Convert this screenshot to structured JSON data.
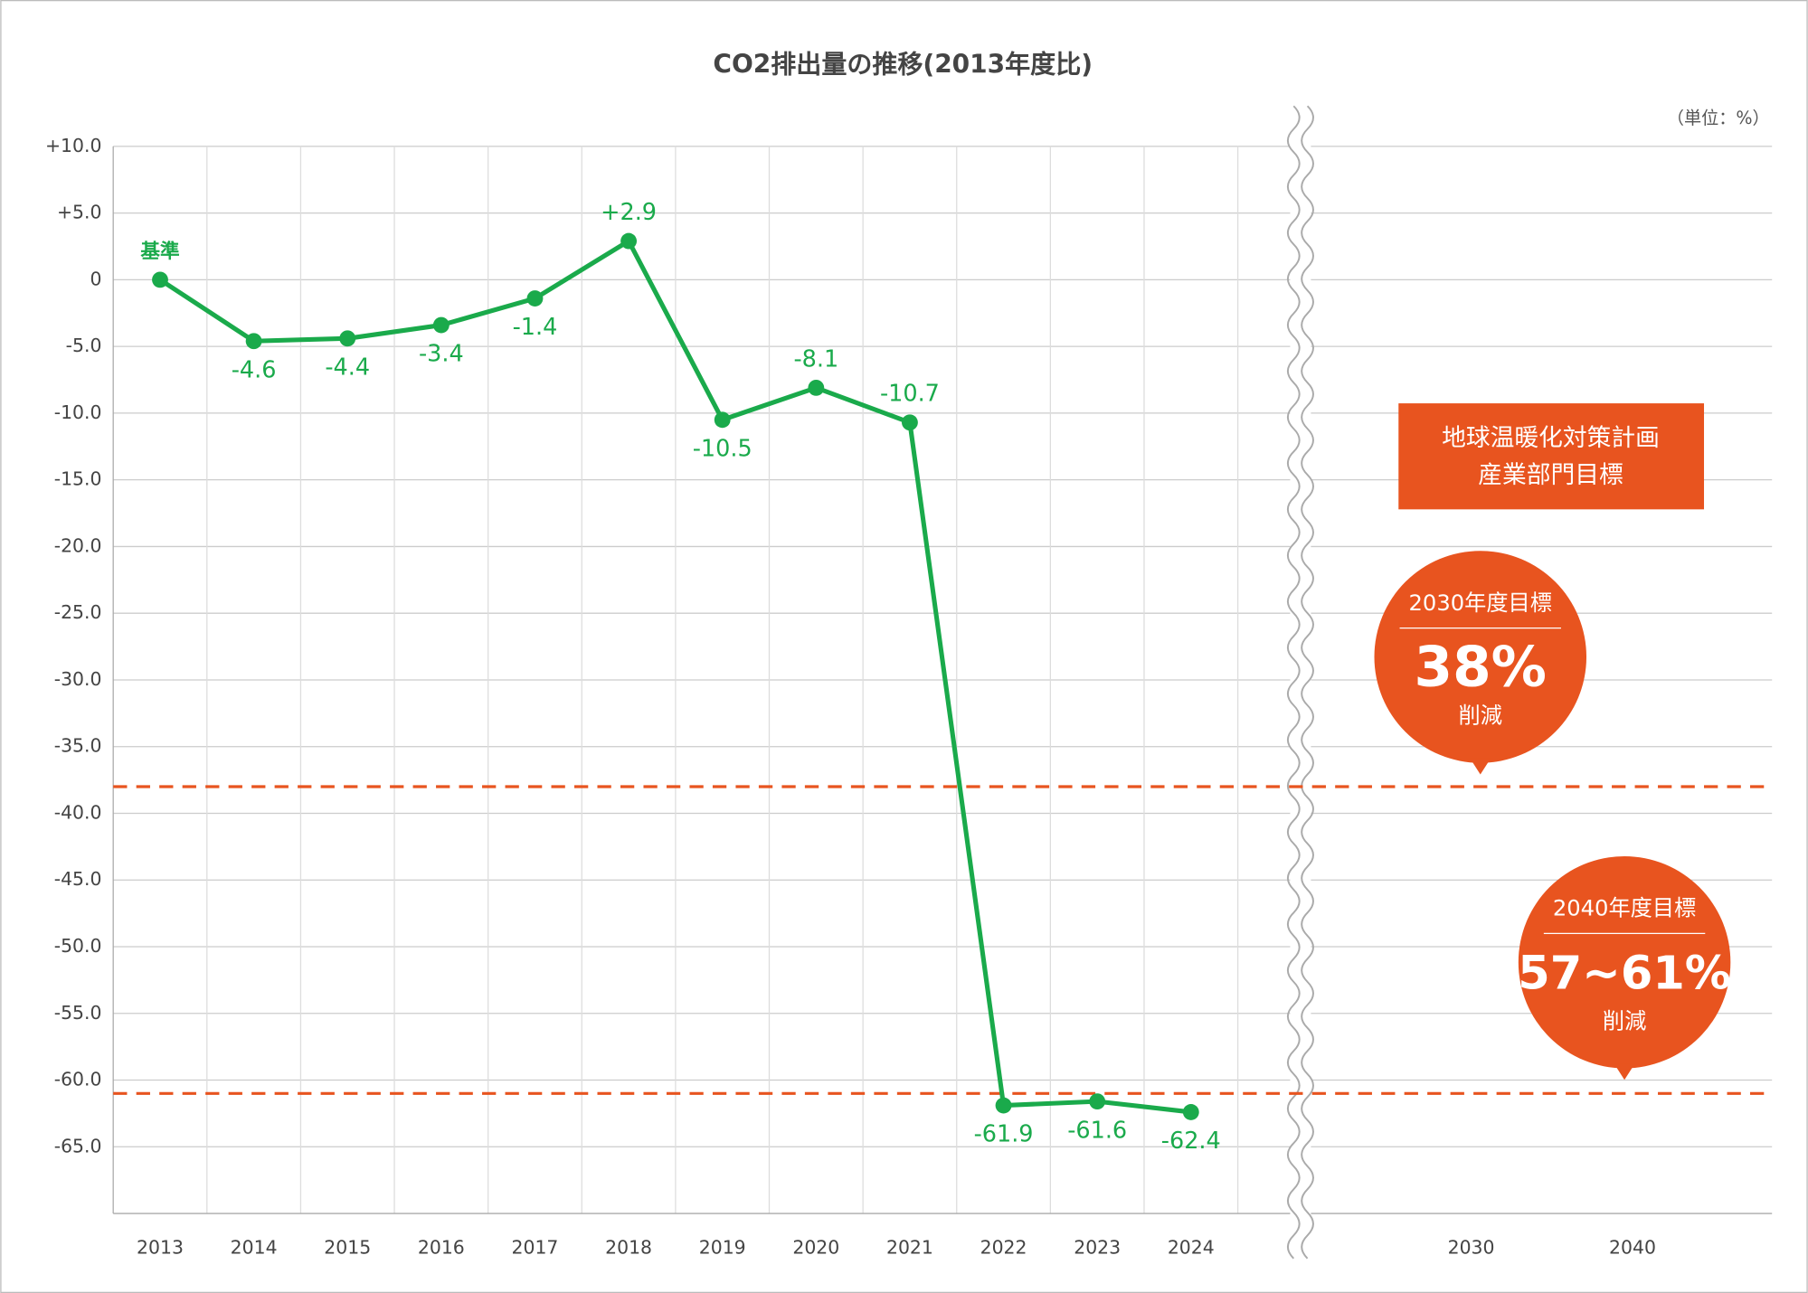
{
  "chart_data": {
    "type": "line",
    "title": "CO2排出量の推移(2013年度比)",
    "unit_label": "（単位：%）",
    "categories": [
      "2013",
      "2014",
      "2015",
      "2016",
      "2017",
      "2018",
      "2019",
      "2020",
      "2021",
      "2022",
      "2023",
      "2024",
      "2030",
      "2040"
    ],
    "series": [
      {
        "name": "CO2排出量",
        "color": "#1aaa4b",
        "values": [
          0,
          -4.6,
          -4.4,
          -3.4,
          -1.4,
          2.9,
          -10.5,
          -8.1,
          -10.7,
          -61.9,
          -61.6,
          -62.4,
          null,
          null
        ],
        "value_labels": [
          "基準",
          "-4.6",
          "-4.4",
          "-3.4",
          "-1.4",
          "+2.9",
          "-10.5",
          "-8.1",
          "-10.7",
          "-61.9",
          "-61.6",
          "-62.4",
          null,
          null
        ]
      }
    ],
    "ylim": [
      -70,
      10
    ],
    "yticks": [
      {
        "value": 10,
        "label": "+10.0"
      },
      {
        "value": 5,
        "label": "+5.0"
      },
      0,
      {
        "value": -5,
        "label": "-5.0"
      },
      {
        "value": -10,
        "label": "-10.0"
      },
      {
        "value": -15,
        "label": "-15.0"
      },
      {
        "value": -20,
        "label": "-20.0"
      },
      {
        "value": -25,
        "label": "-25.0"
      },
      {
        "value": -30,
        "label": "-30.0"
      },
      {
        "value": -35,
        "label": "-35.0"
      },
      {
        "value": -40,
        "label": "-40.0"
      },
      {
        "value": -45,
        "label": "-45.0"
      },
      {
        "value": -50,
        "label": "-50.0"
      },
      {
        "value": -55,
        "label": "-55.0"
      },
      {
        "value": -60,
        "label": "-60.0"
      },
      {
        "value": -65,
        "label": "-65.0"
      }
    ],
    "grid": true,
    "target_lines": {
      "color": "#e8541f",
      "values": [
        -38,
        -61
      ]
    },
    "target_box": {
      "color": "#e8541f",
      "lines": [
        "地球温暖化対策計画",
        "産業部門目標"
      ]
    },
    "targets": [
      {
        "heading": "2030年度目標",
        "amount": "38%",
        "note": "削減"
      },
      {
        "heading": "2040年度目標",
        "amount": "57~61%",
        "note": "削減"
      }
    ]
  }
}
